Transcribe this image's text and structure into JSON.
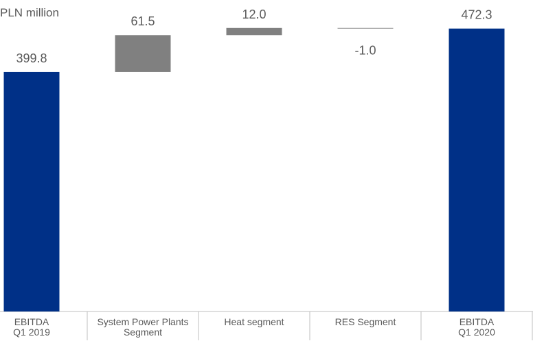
{
  "chart_data": {
    "type": "waterfall",
    "unit_label": "PLN million",
    "categories": [
      "EBITDA\nQ1 2019",
      "System Power Plants\nSegment",
      "Heat segment",
      "RES Segment",
      "EBITDA\nQ1 2020"
    ],
    "values": [
      399.8,
      61.5,
      12.0,
      -1.0,
      472.3
    ],
    "value_labels": [
      "399.8",
      "61.5",
      "12.0",
      "-1.0",
      "472.3"
    ],
    "bar_kinds": [
      "total",
      "delta",
      "delta",
      "delta",
      "total"
    ],
    "ylim": [
      0,
      520
    ],
    "grid": false,
    "legend": "none"
  },
  "colors": {
    "total": "#003087",
    "delta": "#808080",
    "label": "#595959",
    "axis": "#bfbfbf"
  }
}
